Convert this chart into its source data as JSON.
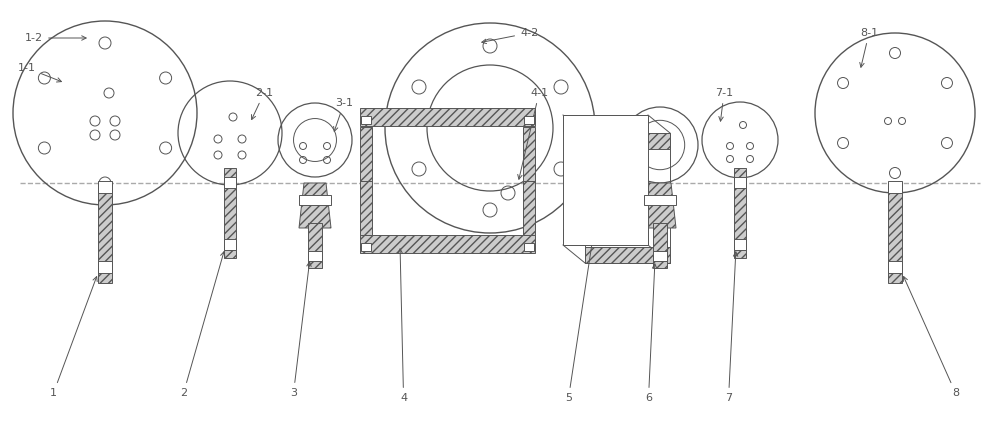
{
  "bg_color": "#ffffff",
  "line_color": "#555555",
  "dashed_line_color": "#aaaaaa",
  "fig_width": 10.0,
  "fig_height": 4.23,
  "dpi": 100
}
